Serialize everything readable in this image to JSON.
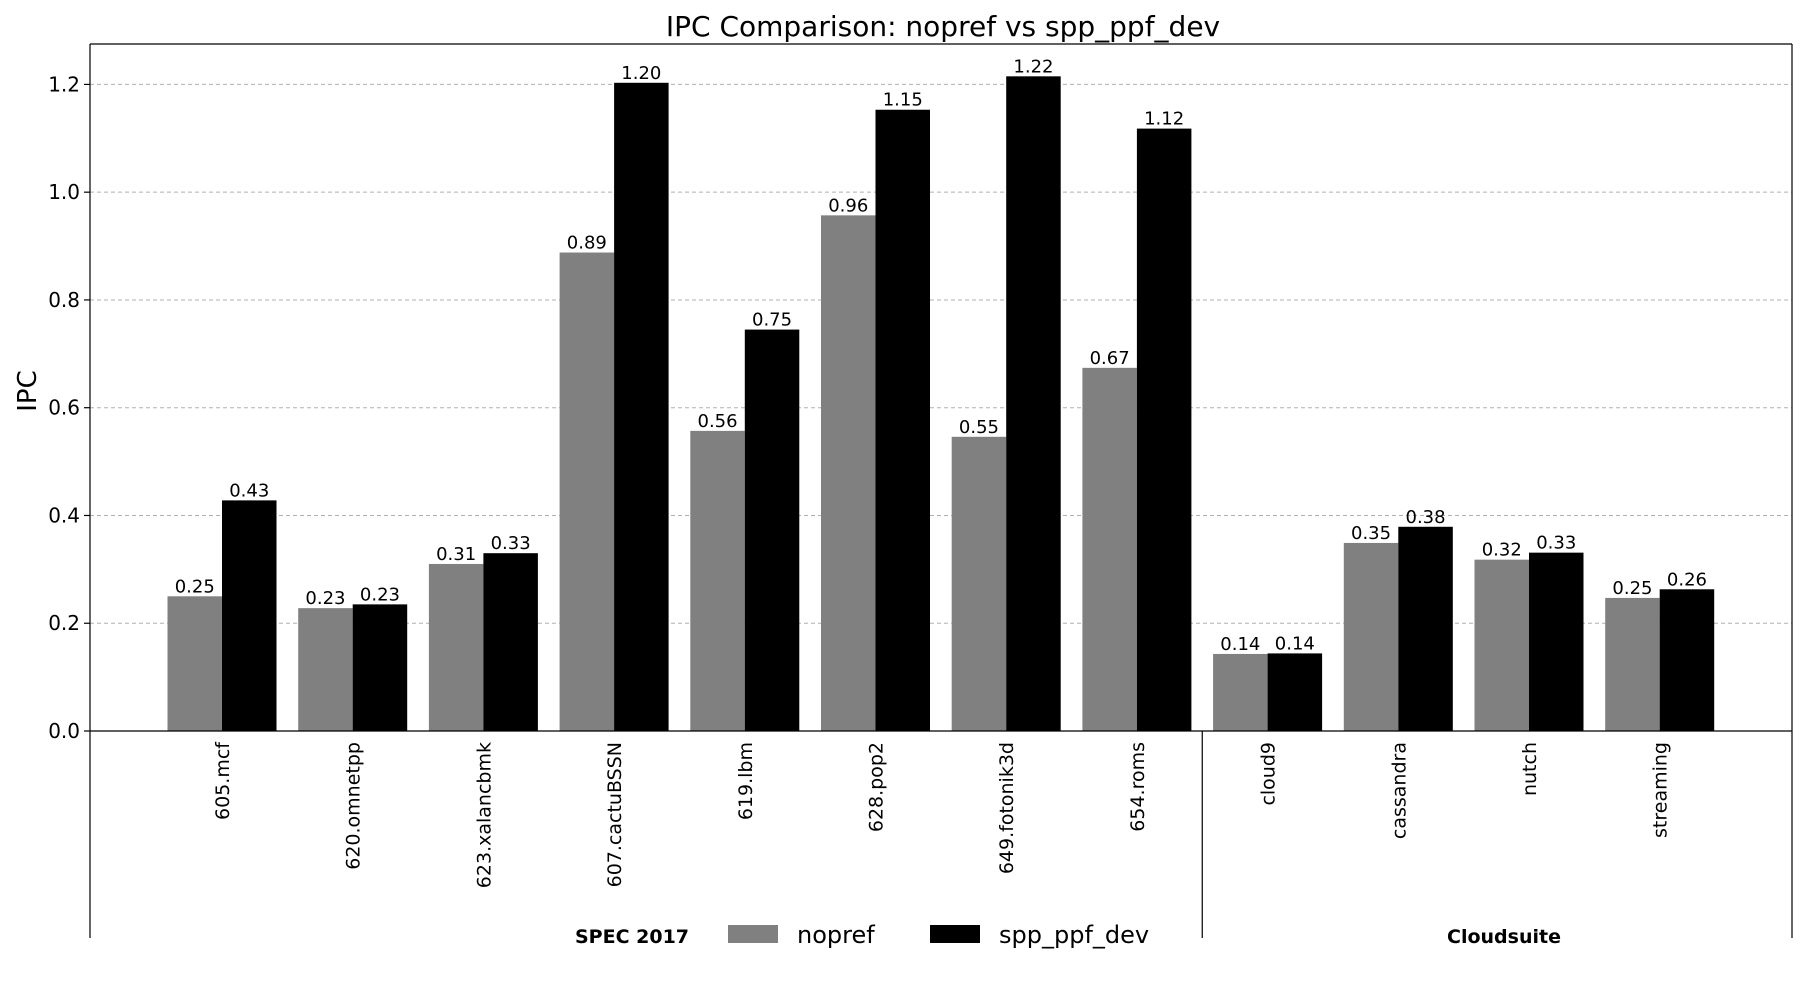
{
  "chart_data": {
    "type": "bar",
    "title": "IPC Comparison: nopref vs spp_ppf_dev",
    "xlabel": "",
    "ylabel": "IPC",
    "ylim": [
      0,
      1.275
    ],
    "yticks": [
      0.0,
      0.2,
      0.4,
      0.6,
      0.8,
      1.0,
      1.2
    ],
    "ytick_labels": [
      "0.0",
      "0.2",
      "0.4",
      "0.6",
      "0.8",
      "1.0",
      "1.2"
    ],
    "grid": "y-dashed",
    "categories": [
      "605.mcf",
      "620.omnetpp",
      "623.xalancbmk",
      "607.cactuBSSN",
      "619.lbm",
      "628.pop2",
      "649.fotonik3d",
      "654.roms",
      "cloud9",
      "cassandra",
      "nutch",
      "streaming"
    ],
    "series": [
      {
        "name": "nopref",
        "color": "#808080",
        "values": [
          0.25,
          0.228,
          0.31,
          0.888,
          0.557,
          0.957,
          0.546,
          0.674,
          0.143,
          0.349,
          0.318,
          0.247
        ],
        "labels": [
          "0.25",
          "0.23",
          "0.31",
          "0.89",
          "0.56",
          "0.96",
          "0.55",
          "0.67",
          "0.14",
          "0.35",
          "0.32",
          "0.25"
        ]
      },
      {
        "name": "spp_ppf_dev",
        "color": "#000000",
        "values": [
          0.428,
          0.235,
          0.33,
          1.203,
          0.745,
          1.153,
          1.215,
          1.118,
          0.144,
          0.379,
          0.331,
          0.263
        ],
        "labels": [
          "0.43",
          "0.23",
          "0.33",
          "1.20",
          "0.75",
          "1.15",
          "1.22",
          "1.12",
          "0.14",
          "0.38",
          "0.33",
          "0.26"
        ]
      }
    ],
    "groups": [
      {
        "name": "SPEC 2017",
        "categories": [
          "605.mcf",
          "620.omnetpp",
          "623.xalancbmk",
          "607.cactuBSSN",
          "619.lbm",
          "628.pop2",
          "649.fotonik3d",
          "654.roms"
        ]
      },
      {
        "name": "Cloudsuite",
        "categories": [
          "cloud9",
          "cassandra",
          "nutch",
          "streaming"
        ]
      }
    ],
    "legend": {
      "placement": "bottom-center",
      "entries": [
        "nopref",
        "spp_ppf_dev"
      ]
    }
  }
}
